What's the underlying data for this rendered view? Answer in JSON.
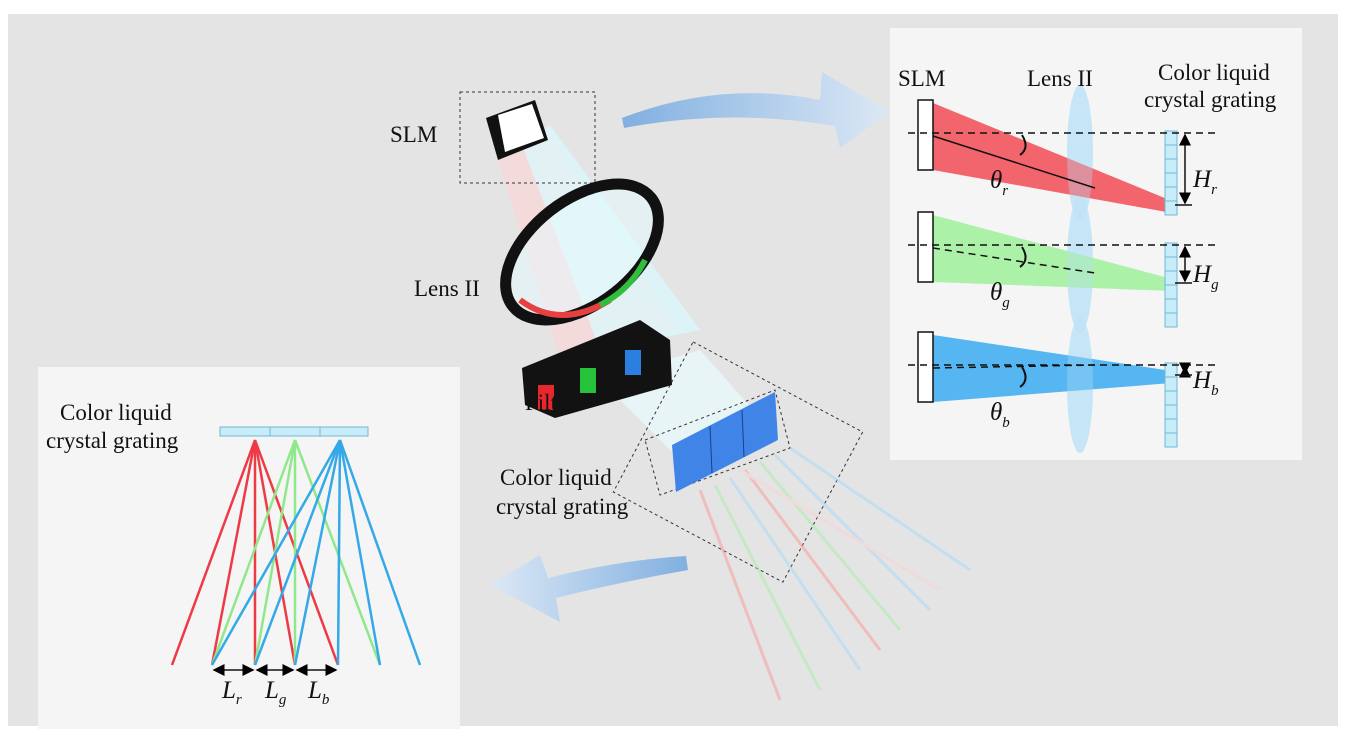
{
  "center": {
    "slm": "SLM",
    "lens": "Lens II",
    "filter": "Filter",
    "grating": [
      "Color liquid",
      "crystal grating"
    ]
  },
  "right_panel": {
    "slm": "SLM",
    "lens": "Lens II",
    "grating": [
      "Color liquid",
      "crystal grating"
    ],
    "rows": [
      {
        "angle": {
          "symbol": "θ",
          "subscript": "r"
        },
        "height": {
          "symbol": "H",
          "subscript": "r"
        }
      },
      {
        "angle": {
          "symbol": "θ",
          "subscript": "g"
        },
        "height": {
          "symbol": "H",
          "subscript": "g"
        }
      },
      {
        "angle": {
          "symbol": "θ",
          "subscript": "b"
        },
        "height": {
          "symbol": "H",
          "subscript": "b"
        }
      }
    ]
  },
  "left_panel": {
    "grating": [
      "Color liquid",
      "crystal grating"
    ],
    "distances": [
      {
        "symbol": "L",
        "subscript": "r"
      },
      {
        "symbol": "L",
        "subscript": "g"
      },
      {
        "symbol": "L",
        "subscript": "b"
      }
    ]
  }
}
